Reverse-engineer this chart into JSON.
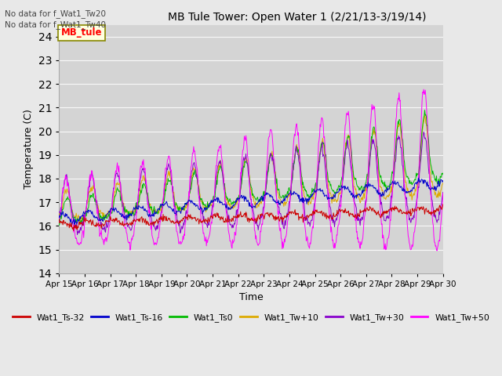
{
  "title": "MB Tule Tower: Open Water 1 (2/21/13-3/19/14)",
  "xlabel": "Time",
  "ylabel": "Temperature (C)",
  "ylim": [
    14.0,
    24.5
  ],
  "yticks": [
    14.0,
    15.0,
    16.0,
    17.0,
    18.0,
    19.0,
    20.0,
    21.0,
    22.0,
    23.0,
    24.0
  ],
  "background_color": "#e8e8e8",
  "plot_bg_color": "#d4d4d4",
  "annotation_text1": "No data for f_Wat1_Tw20",
  "annotation_text2": "No data for f_Wat1_Tw40",
  "legend_box_label": "MB_tule",
  "legend_entries": [
    {
      "label": "Wat1_Ts-32",
      "color": "#cc0000"
    },
    {
      "label": "Wat1_Ts-16",
      "color": "#0000cc"
    },
    {
      "label": "Wat1_Ts0",
      "color": "#00bb00"
    },
    {
      "label": "Wat1_Tw+10",
      "color": "#ddaa00"
    },
    {
      "label": "Wat1_Tw+30",
      "color": "#8800cc"
    },
    {
      "label": "Wat1_Tw+50",
      "color": "#ff00ff"
    }
  ]
}
